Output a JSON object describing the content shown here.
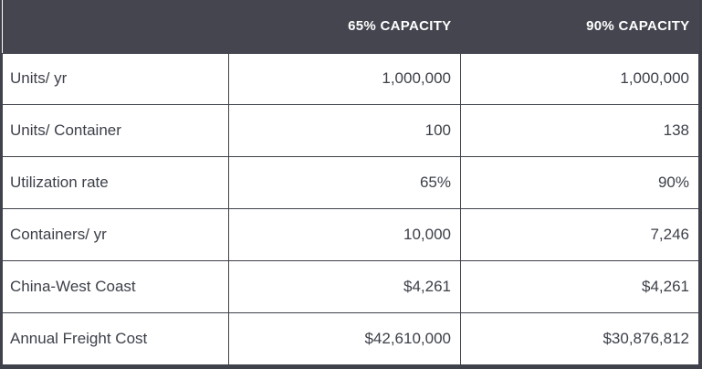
{
  "chart_data": {
    "type": "table",
    "title": "",
    "columns": [
      "",
      "65% CAPACITY",
      "90% CAPACITY"
    ],
    "rows": [
      {
        "label": "Units/ yr",
        "values": [
          "1,000,000",
          "1,000,000"
        ]
      },
      {
        "label": "Units/ Container",
        "values": [
          "100",
          "138"
        ]
      },
      {
        "label": "Utilization rate",
        "values": [
          "65%",
          "90%"
        ]
      },
      {
        "label": "Containers/ yr",
        "values": [
          "10,000",
          "7,246"
        ]
      },
      {
        "label": "China-West Coast",
        "values": [
          "$4,261",
          "$4,261"
        ]
      },
      {
        "label": "Annual Freight Cost",
        "values": [
          "$42,610,000",
          "$30,876,812"
        ]
      }
    ]
  },
  "colors": {
    "header_bg": "#44454F",
    "border": "#3F414B",
    "text": "#3D4049",
    "header_text": "#FFFFFF",
    "row_bg": "#FFFFFF"
  }
}
